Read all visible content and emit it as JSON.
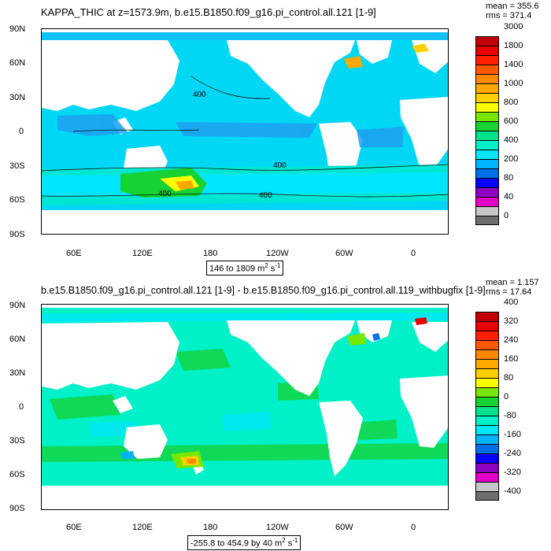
{
  "chart_data": [
    {
      "type": "heatmap",
      "title": "KAPPA_THIC at z=1573.9m, b.e15.B1850.f09_g16.pi_control.all.121 [1-9]",
      "stats": {
        "mean": "mean = 355.6",
        "rms": "rms = 371.4"
      },
      "range_text": "146 to 1809 m",
      "range_units": {
        "sup_2": "2",
        "s": "s",
        "sup_neg1": "-1"
      },
      "lat_ticks": [
        "90N",
        "60N",
        "30N",
        "0",
        "30S",
        "60S",
        "90S"
      ],
      "lon_ticks": [
        "60E",
        "120E",
        "180",
        "120W",
        "60W",
        "0"
      ],
      "colorbar_levels": [
        "0",
        "40",
        "80",
        "200",
        "400",
        "600",
        "800",
        "1000",
        "1400",
        "1800",
        "3000"
      ],
      "colorbar_colors": [
        "#6e6e6e",
        "#c8c8c8",
        "#e000c8",
        "#9000c0",
        "#0000ff",
        "#0070e8",
        "#00b4ff",
        "#00e6ff",
        "#00f0c8",
        "#00e28c",
        "#16d232",
        "#78e600",
        "#ffff00",
        "#ffd000",
        "#ffa800",
        "#ff8800",
        "#ff5800",
        "#ff2000",
        "#e80000",
        "#c00000"
      ],
      "contour_label": "400"
    },
    {
      "type": "heatmap",
      "title": "b.e15.B1850.f09_g16.pi_control.all.121 [1-9] - b.e15.B1850.f09_g16.pi_control.all.119_withbugfix [1-9]",
      "stats": {
        "mean": "mean = 1.157",
        "rms": "rms = 17.64"
      },
      "range_text": "-255.8 to 454.9 by 40 m",
      "range_units": {
        "sup_2": "2",
        "s": "s",
        "sup_neg1": "-1"
      },
      "lat_ticks": [
        "90N",
        "60N",
        "30N",
        "0",
        "30S",
        "60S",
        "90S"
      ],
      "lon_ticks": [
        "60E",
        "120E",
        "180",
        "120W",
        "60W",
        "0"
      ],
      "colorbar_levels": [
        "-400",
        "-320",
        "-240",
        "-160",
        "-80",
        "0",
        "80",
        "160",
        "240",
        "320",
        "400"
      ],
      "colorbar_colors": [
        "#6e6e6e",
        "#c8c8c8",
        "#e000c8",
        "#9000c0",
        "#0000ff",
        "#0070e8",
        "#00b4ff",
        "#00e6ff",
        "#00f0c8",
        "#00e28c",
        "#16d232",
        "#78e600",
        "#ffff00",
        "#ffd000",
        "#ffa800",
        "#ff8800",
        "#ff5800",
        "#ff2000",
        "#e80000",
        "#c00000"
      ]
    }
  ]
}
